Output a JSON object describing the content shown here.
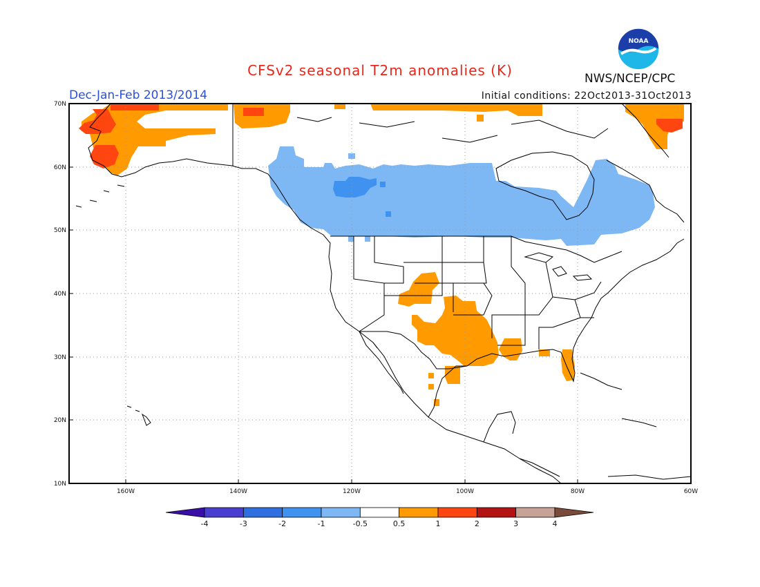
{
  "title": "CFSv2 seasonal T2m anomalies (K)",
  "period": "Dec-Jan-Feb 2013/2014",
  "initial_conditions": "Initial conditions: 22Oct2013-31Oct2013",
  "agency": "NWS/NCEP/CPC",
  "logo_text": "NOAA",
  "lon_ticks": [
    "160W",
    "140W",
    "120W",
    "100W",
    "80W",
    "60W"
  ],
  "lat_ticks": [
    "70N",
    "60N",
    "50N",
    "40N",
    "30N",
    "20N",
    "10N"
  ],
  "colorbar": {
    "labels": [
      "-4",
      "-3",
      "-2",
      "-1",
      "-0.5",
      "0.5",
      "1",
      "2",
      "3",
      "4"
    ],
    "colors": [
      "#3a0fa8",
      "#4a3ed0",
      "#2f6fe0",
      "#3f92f0",
      "#7db8f4",
      "#ffffff",
      "#ff9a00",
      "#ff4510",
      "#b31313",
      "#c8a294",
      "#7a4a3a"
    ]
  },
  "colors": {
    "title": "#e8271c",
    "period": "#2b4fd6",
    "cool": "#7db8f4",
    "cool_strong": "#3f92f0",
    "warm": "#ff9a00",
    "warm_strong": "#ff4510"
  }
}
